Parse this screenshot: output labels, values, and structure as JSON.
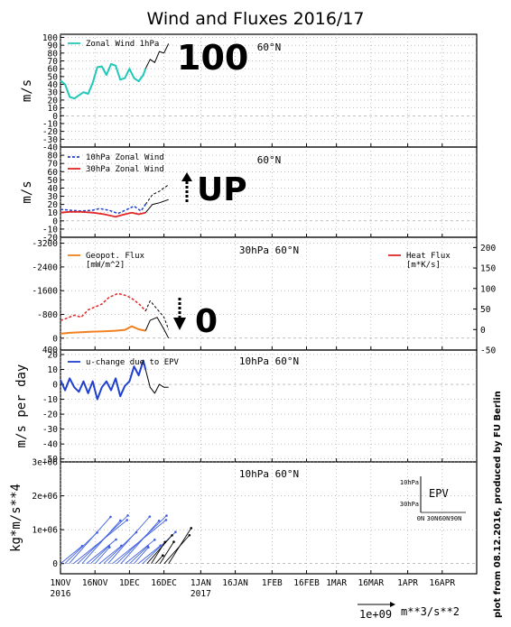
{
  "figure": {
    "title": "Wind and Fluxes 2016/17",
    "credit": "plot from 08.12.2016, produced by FU Berlin",
    "date_ticks": [
      "1NOV",
      "16NOV",
      "1DEC",
      "16DEC",
      "1JAN",
      "16JAN",
      "1FEB",
      "16FEB",
      "1MAR",
      "16MAR",
      "1APR",
      "16APR"
    ],
    "year_labels": [
      {
        "label": "2016",
        "at": "1NOV"
      },
      {
        "label": "2017",
        "at": "1JAN"
      }
    ],
    "vector_scale": {
      "label": "1e+09",
      "unit": "m**3/s**2"
    }
  },
  "annotations": {
    "panel1": "100",
    "panel2": "UP",
    "panel3": "0"
  },
  "colors": {
    "zonal_1hpa": "#20c8b8",
    "zonal_10hpa": "#2040d0",
    "zonal_30hpa": "#e02828",
    "geopot_flux": "#f08020",
    "heat_flux": "#e02828",
    "u_change": "#2040d0",
    "epv_arrows": "#4060e0",
    "forecast": "#000000"
  },
  "chart_data": [
    {
      "type": "line",
      "panel": 1,
      "title": "60°N",
      "ylabel": "m/s",
      "ylim": [
        -40,
        100
      ],
      "yticks": [
        -40,
        -30,
        -20,
        -10,
        0,
        10,
        20,
        30,
        40,
        50,
        60,
        70,
        80,
        90,
        100
      ],
      "series": [
        {
          "name": "Zonal Wind 1hPa",
          "color_key": "zonal_1hpa",
          "x": [
            "2016-11-01",
            "2016-11-03",
            "2016-11-05",
            "2016-11-07",
            "2016-11-09",
            "2016-11-11",
            "2016-11-13",
            "2016-11-15",
            "2016-11-17",
            "2016-11-19",
            "2016-11-21",
            "2016-11-23",
            "2016-11-25",
            "2016-11-27",
            "2016-11-29",
            "2016-12-01",
            "2016-12-03",
            "2016-12-05",
            "2016-12-07",
            "2016-12-08"
          ],
          "y": [
            45,
            40,
            24,
            22,
            26,
            30,
            28,
            42,
            62,
            63,
            52,
            66,
            64,
            46,
            48,
            60,
            48,
            44,
            52,
            60
          ]
        },
        {
          "name": "forecast",
          "color_key": "forecast",
          "x": [
            "2016-12-08",
            "2016-12-10",
            "2016-12-12",
            "2016-12-14",
            "2016-12-16",
            "2016-12-18"
          ],
          "y": [
            60,
            72,
            68,
            82,
            80,
            92
          ]
        }
      ]
    },
    {
      "type": "line",
      "panel": 2,
      "title": "60°N",
      "ylabel": "m/s",
      "ylim": [
        -20,
        90
      ],
      "yticks": [
        -20,
        -10,
        0,
        10,
        20,
        30,
        40,
        50,
        60,
        70,
        80
      ],
      "series": [
        {
          "name": "10hPa Zonal Wind",
          "color_key": "zonal_10hpa",
          "dashed": true,
          "x": [
            "2016-11-01",
            "2016-11-05",
            "2016-11-10",
            "2016-11-15",
            "2016-11-18",
            "2016-11-22",
            "2016-11-26",
            "2016-11-30",
            "2016-12-03",
            "2016-12-06",
            "2016-12-08"
          ],
          "y": [
            14,
            13,
            12,
            13,
            15,
            13,
            9,
            14,
            18,
            12,
            20
          ]
        },
        {
          "name": "30hPa Zonal Wind",
          "color_key": "zonal_30hpa",
          "x": [
            "2016-11-01",
            "2016-11-05",
            "2016-11-10",
            "2016-11-15",
            "2016-11-20",
            "2016-11-25",
            "2016-11-29",
            "2016-12-02",
            "2016-12-05",
            "2016-12-08"
          ],
          "y": [
            10,
            11,
            11,
            10,
            8,
            5,
            8,
            10,
            8,
            10
          ]
        },
        {
          "name": "forecast 10hPa",
          "color_key": "forecast",
          "dashed": true,
          "x": [
            "2016-12-08",
            "2016-12-11",
            "2016-12-14",
            "2016-12-18"
          ],
          "y": [
            20,
            32,
            36,
            44
          ]
        },
        {
          "name": "forecast 30hPa",
          "color_key": "forecast",
          "x": [
            "2016-12-08",
            "2016-12-11",
            "2016-12-14",
            "2016-12-18"
          ],
          "y": [
            10,
            20,
            22,
            26
          ]
        }
      ]
    },
    {
      "type": "line",
      "panel": 3,
      "title": "30hPa 60°N",
      "ylim_left": [
        400,
        -3400
      ],
      "yticks_left": [
        -3200,
        -2400,
        -1600,
        -800,
        0
      ],
      "ylim_right": [
        -50,
        225
      ],
      "yticks_right": [
        -50,
        0,
        50,
        100,
        150,
        200
      ],
      "series": [
        {
          "name": "Geopot. Flux",
          "unit": "[mW/m^2]",
          "axis": "left",
          "color_key": "geopot_flux",
          "x": [
            "2016-11-01",
            "2016-11-05",
            "2016-11-10",
            "2016-11-15",
            "2016-11-20",
            "2016-11-25",
            "2016-11-29",
            "2016-12-02",
            "2016-12-05",
            "2016-12-08"
          ],
          "y": [
            -150,
            -180,
            -200,
            -220,
            -230,
            -250,
            -280,
            -400,
            -300,
            -250
          ]
        },
        {
          "name": "Heat Flux",
          "unit": "[m*K/s]",
          "axis": "right",
          "color_key": "heat_flux",
          "x": [
            "2016-11-01",
            "2016-11-04",
            "2016-11-07",
            "2016-11-10",
            "2016-11-13",
            "2016-11-16",
            "2016-11-19",
            "2016-11-22",
            "2016-11-26",
            "2016-11-30",
            "2016-12-03",
            "2016-12-06",
            "2016-12-08"
          ],
          "y": [
            22,
            28,
            35,
            30,
            48,
            55,
            62,
            78,
            88,
            82,
            72,
            58,
            45
          ]
        },
        {
          "name": "forecast geopot",
          "axis": "left",
          "color_key": "forecast",
          "x": [
            "2016-12-08",
            "2016-12-10",
            "2016-12-13",
            "2016-12-16",
            "2016-12-18"
          ],
          "y": [
            -250,
            -600,
            -700,
            -300,
            0
          ]
        },
        {
          "name": "forecast heat",
          "axis": "right",
          "color_key": "forecast",
          "dashed": true,
          "x": [
            "2016-12-08",
            "2016-12-10",
            "2016-12-13",
            "2016-12-16",
            "2016-12-18"
          ],
          "y": [
            45,
            70,
            50,
            30,
            0
          ]
        }
      ]
    },
    {
      "type": "line",
      "panel": 4,
      "title": "10hPa 60°N",
      "ylabel": "m/s per day",
      "ylim": [
        -50,
        20
      ],
      "yticks": [
        -50,
        -40,
        -30,
        -20,
        -10,
        0,
        10,
        20
      ],
      "series": [
        {
          "name": "u-change due to EPV",
          "color_key": "u_change",
          "x": [
            "2016-11-01",
            "2016-11-03",
            "2016-11-05",
            "2016-11-07",
            "2016-11-09",
            "2016-11-11",
            "2016-11-13",
            "2016-11-15",
            "2016-11-17",
            "2016-11-19",
            "2016-11-21",
            "2016-11-23",
            "2016-11-25",
            "2016-11-27",
            "2016-11-29",
            "2016-12-01",
            "2016-12-03",
            "2016-12-05",
            "2016-12-07",
            "2016-12-08"
          ],
          "y": [
            3,
            -4,
            4,
            -2,
            -5,
            2,
            -6,
            2,
            -10,
            -2,
            2,
            -4,
            4,
            -8,
            -1,
            2,
            12,
            6,
            16,
            10
          ]
        },
        {
          "name": "forecast",
          "color_key": "forecast",
          "x": [
            "2016-12-08",
            "2016-12-10",
            "2016-12-12",
            "2016-12-14",
            "2016-12-16",
            "2016-12-18"
          ],
          "y": [
            10,
            -2,
            -6,
            0,
            -2,
            -2
          ]
        }
      ]
    },
    {
      "type": "vector",
      "panel": 5,
      "title": "10hPa 60°N",
      "ylabel": "kg*m/s**4",
      "ylim": [
        -0.3,
        3.0
      ],
      "ytick_labels": [
        "0",
        "1e+06",
        "2e+06",
        "3e+06"
      ],
      "legend": {
        "label": "EPV",
        "yticks": [
          "10hPa",
          "30hPa"
        ],
        "xticks": [
          "0N",
          "30N",
          "60N",
          "90N"
        ]
      }
    }
  ]
}
